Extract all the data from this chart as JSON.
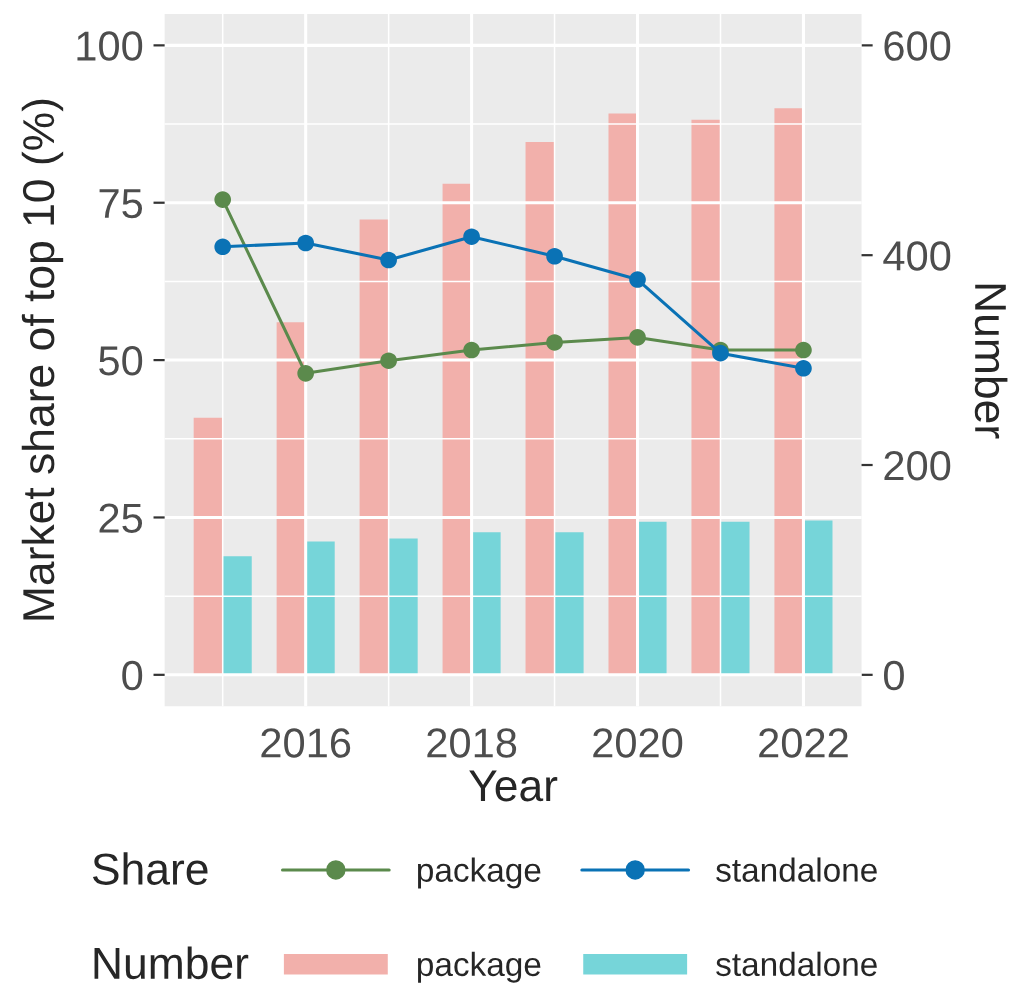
{
  "chart_data": {
    "type": "bar",
    "xlabel": "Year",
    "ylabel": "Market share of top 10 (%)",
    "y2label": "Number",
    "legend_title": [
      "Share",
      "Number"
    ],
    "x": [
      2015,
      2016,
      2017,
      2018,
      2019,
      2020,
      2021,
      2022
    ],
    "series": [
      {
        "name": "package",
        "type": "line",
        "color": "#5b8a4c",
        "marker": "circle",
        "values": [
          75.5,
          47.9,
          49.9,
          51.6,
          52.8,
          53.6,
          51.6,
          51.6
        ]
      },
      {
        "name": "standalone",
        "type": "line",
        "color": "#0a72b5",
        "marker": "circle",
        "values": [
          68.0,
          68.6,
          65.9,
          69.6,
          66.5,
          62.8,
          51.1,
          48.7
        ]
      },
      {
        "name": "package",
        "axis": "y2",
        "color": "#f2b0ab",
        "values": [
          245,
          336,
          434,
          468,
          508,
          535,
          529,
          540
        ]
      },
      {
        "name": "standalone",
        "axis": "y2",
        "color": "#76d5d9",
        "values": [
          113,
          127,
          130,
          136,
          136,
          146,
          146,
          147
        ]
      }
    ],
    "xlim": [
      2014.3,
      2022.7
    ],
    "xticks": [
      2016,
      2018,
      2020,
      2022
    ],
    "ylim": [
      -5,
      105
    ],
    "yticks": [
      0,
      25,
      50,
      75,
      100
    ],
    "y2lim": [
      -30,
      630
    ],
    "y2ticks": [
      0,
      200,
      400,
      600
    ],
    "grid": true,
    "legend": "bottom"
  }
}
